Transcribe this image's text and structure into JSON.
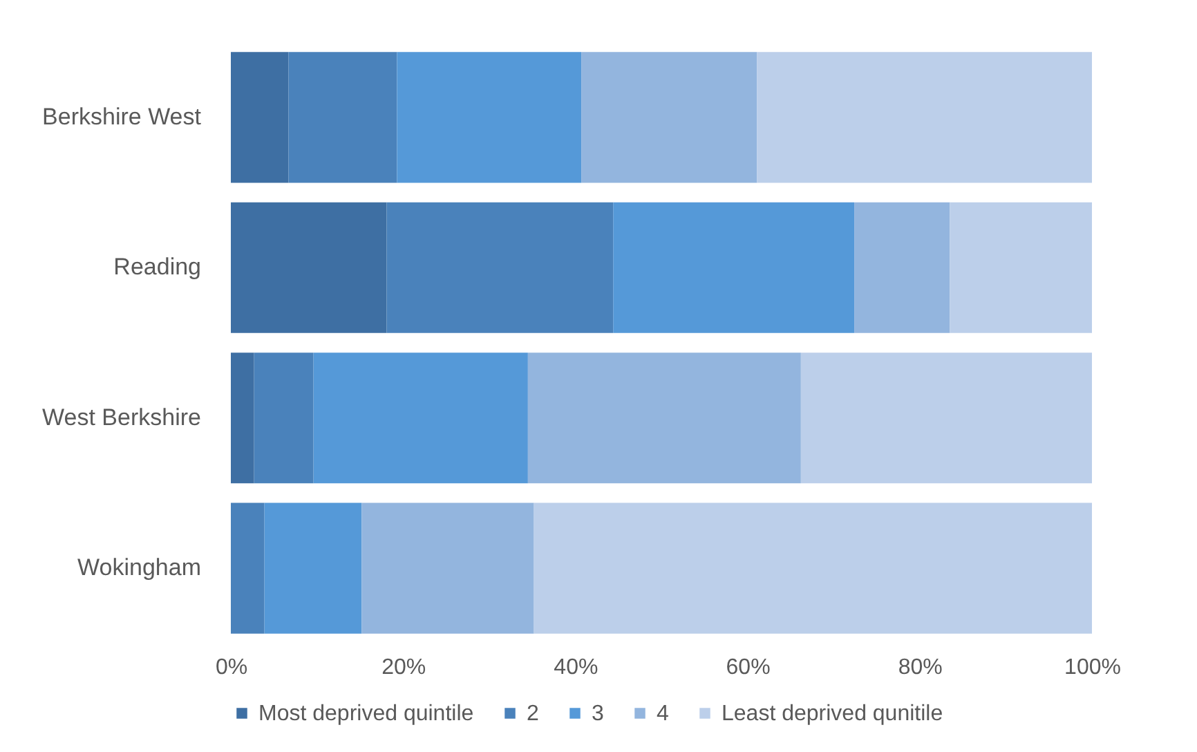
{
  "chart_data": {
    "type": "bar",
    "orientation": "horizontal",
    "stacked": true,
    "categories": [
      "Berkshire West",
      "Reading",
      "West Berkshire",
      "Wokingham"
    ],
    "series": [
      {
        "name": "Most deprived quintile",
        "color": "#3e6fa3",
        "values": [
          6.7,
          18.1,
          2.7,
          0
        ]
      },
      {
        "name": "2",
        "color": "#4a82bb",
        "values": [
          12.6,
          26.3,
          6.9,
          3.9
        ]
      },
      {
        "name": "3",
        "color": "#5599d8",
        "values": [
          21.4,
          28.0,
          24.9,
          11.3
        ]
      },
      {
        "name": "4",
        "color": "#93b5de",
        "values": [
          20.4,
          11.1,
          31.7,
          20.0
        ]
      },
      {
        "name": "Least deprived qunitile",
        "color": "#bccfea",
        "values": [
          38.9,
          16.5,
          33.8,
          64.8
        ]
      }
    ],
    "xlim": [
      0,
      100
    ],
    "xticks": [
      {
        "value": 0,
        "label": "0%"
      },
      {
        "value": 20,
        "label": "20%"
      },
      {
        "value": 40,
        "label": "40%"
      },
      {
        "value": 60,
        "label": "60%"
      },
      {
        "value": 80,
        "label": "80%"
      },
      {
        "value": 100,
        "label": "100%"
      }
    ],
    "grid": false,
    "legend": "bottom"
  }
}
